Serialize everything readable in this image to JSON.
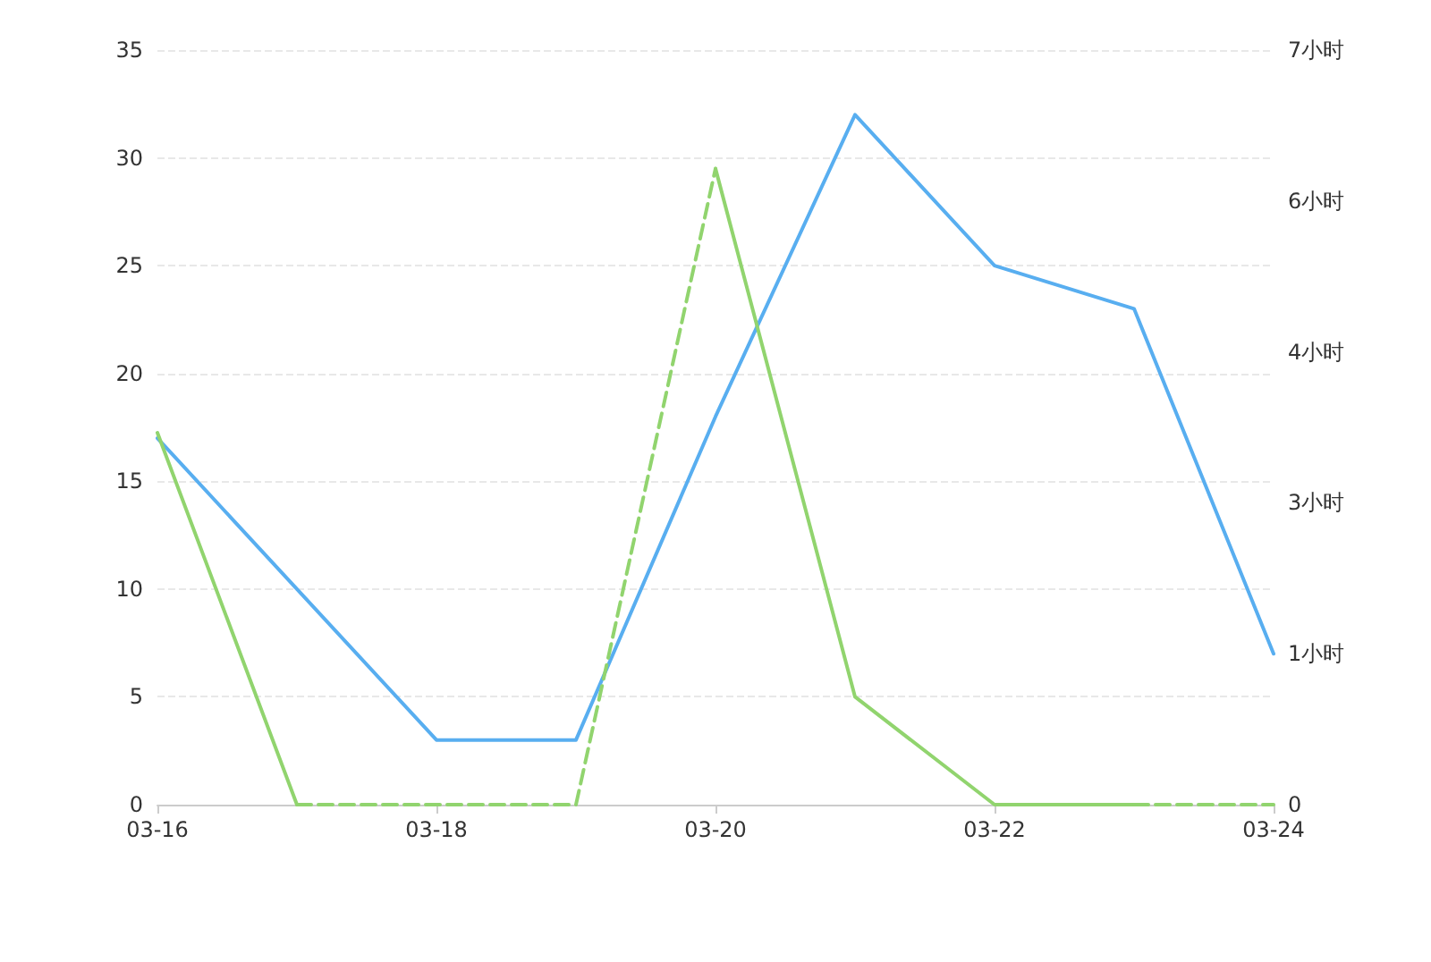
{
  "chart_data": {
    "type": "line",
    "categories": [
      "03-16",
      null,
      "03-18",
      null,
      "03-20",
      null,
      "03-22",
      null,
      "03-24"
    ],
    "series": [
      {
        "color": "#58aef0",
        "values": [
          17,
          10,
          3,
          3,
          18,
          32,
          25,
          23,
          7
        ]
      },
      {
        "color": "#91d46e",
        "axis": "y2",
        "line_style": "solid",
        "values": [
          3.45,
          0,
          null,
          null,
          5.9,
          1.0,
          0,
          0,
          null
        ]
      },
      {
        "color": "#91d46e",
        "axis": "y2",
        "line_style": "dashed",
        "values": [
          null,
          0,
          0,
          0,
          5.9,
          null,
          null,
          0,
          0
        ]
      }
    ],
    "ylim": [
      0,
      35
    ],
    "yticks": [
      0,
      5,
      10,
      15,
      20,
      25,
      30,
      35
    ],
    "y2lim": [
      0,
      7
    ],
    "y2ticks": [
      0,
      {
        "value": 1.4,
        "label": "1小时"
      },
      {
        "value": 2.8,
        "label": "3小时"
      },
      {
        "value": 4.2,
        "label": "4小时"
      },
      {
        "value": 5.6,
        "label": "6小时"
      },
      {
        "value": 7,
        "label": "7小时"
      }
    ],
    "grid": "y",
    "marker": "none"
  }
}
